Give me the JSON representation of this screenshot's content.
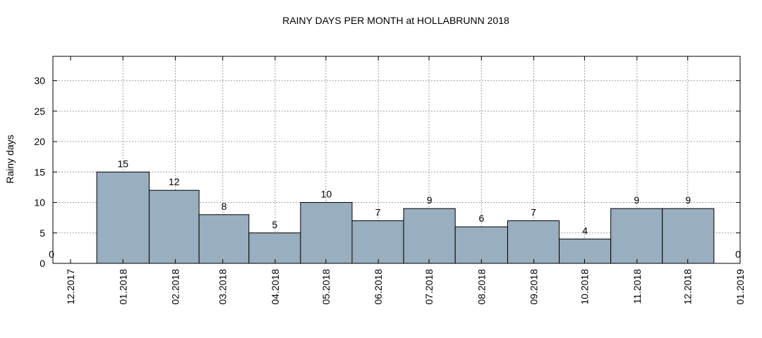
{
  "chart_data": {
    "type": "bar",
    "title": "RAINY DAYS PER MONTH at HOLLABRUNN 2018",
    "ylabel": "Rainy days",
    "xlabel": "",
    "ylim": [
      0,
      34
    ],
    "yticks": [
      0,
      5,
      10,
      15,
      20,
      25,
      30
    ],
    "xticks": [
      "12.2017",
      "01.2018",
      "02.2018",
      "03.2018",
      "04.2018",
      "05.2018",
      "06.2018",
      "07.2018",
      "08.2018",
      "09.2018",
      "10.2018",
      "11.2018",
      "12.2018",
      "01.2019"
    ],
    "categories": [
      "01.2018",
      "02.2018",
      "03.2018",
      "04.2018",
      "05.2018",
      "06.2018",
      "07.2018",
      "08.2018",
      "09.2018",
      "10.2018",
      "11.2018",
      "12.2018"
    ],
    "values": [
      15,
      12,
      8,
      5,
      10,
      7,
      9,
      6,
      7,
      4,
      9,
      9
    ],
    "edge_labels": [
      "0",
      "0"
    ],
    "bar_color": "#99aebf",
    "grid": true
  }
}
